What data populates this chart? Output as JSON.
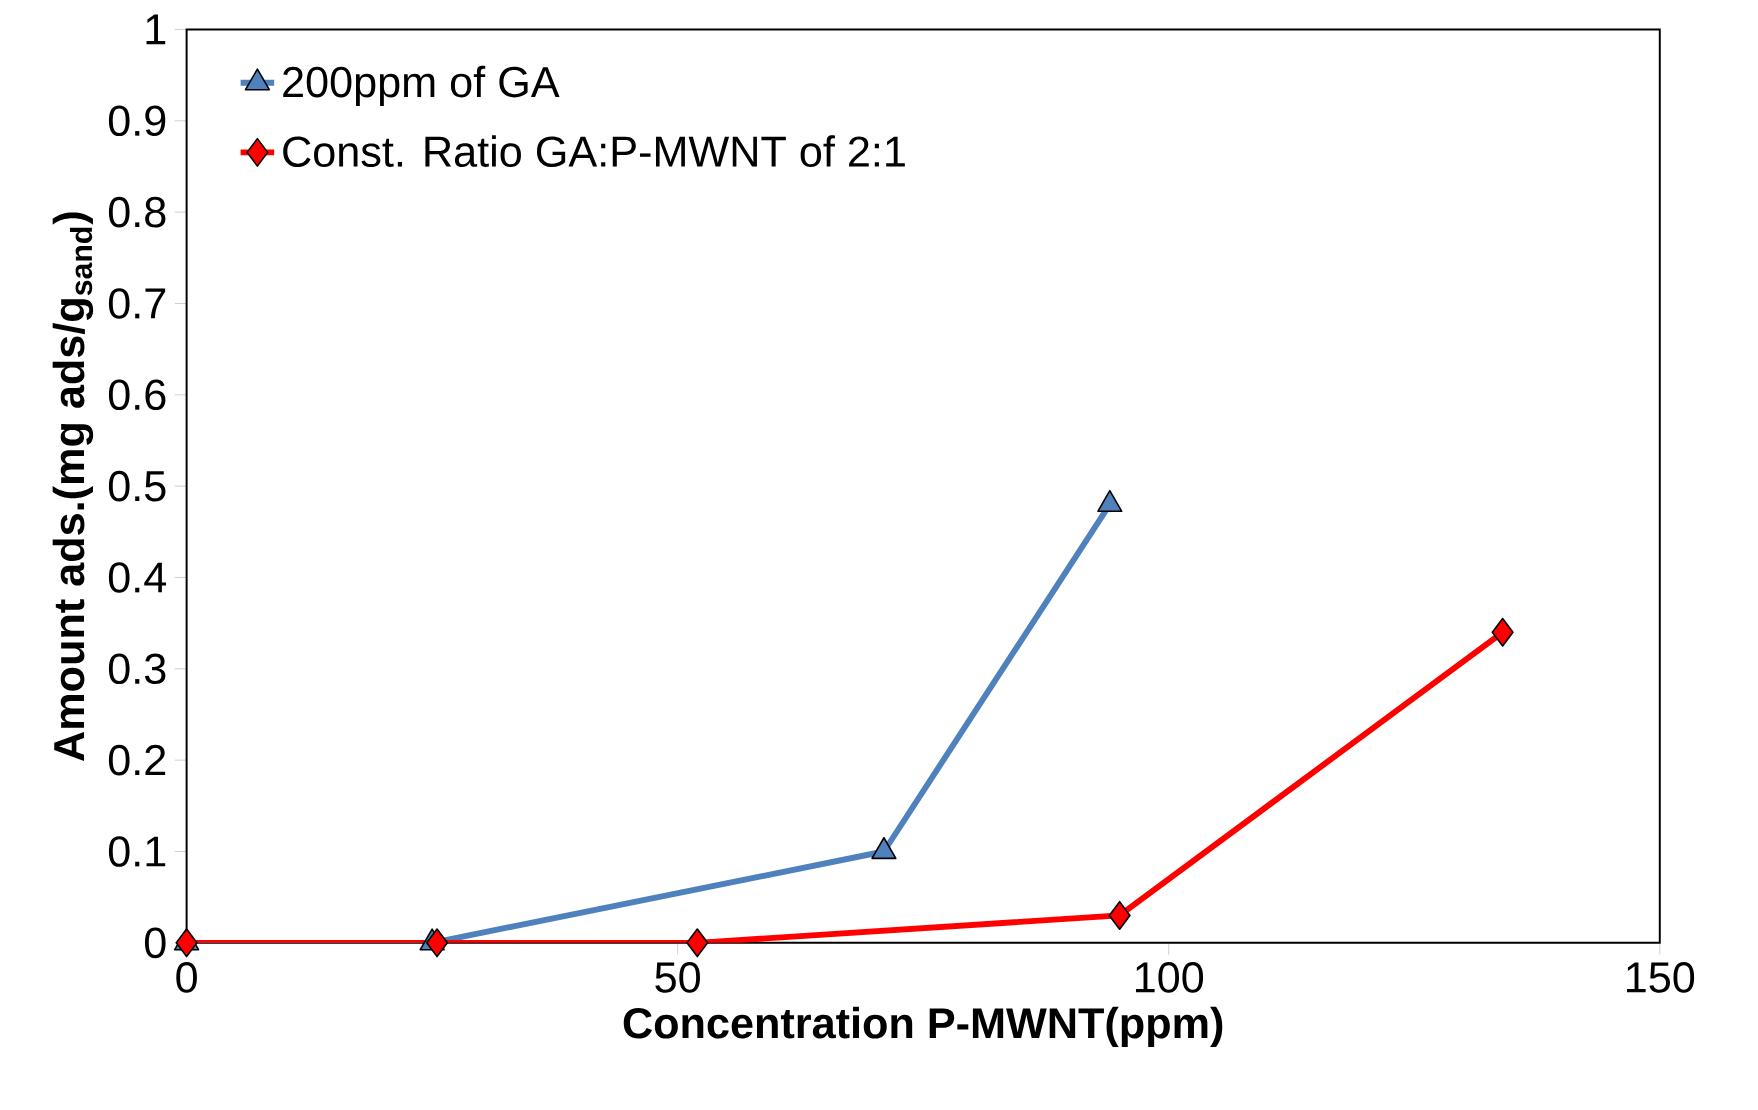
{
  "chart_data": {
    "type": "line",
    "xlabel": "Concentration P-MWNT(ppm)",
    "ylabel": "Amount ads.(mg ads/g$_{sand}$)",
    "xlim": [
      0,
      150
    ],
    "ylim": [
      0,
      1
    ],
    "xticks": [
      0,
      50,
      100,
      150
    ],
    "yticks": [
      0,
      0.1,
      0.2,
      0.3,
      0.4,
      0.5,
      0.6,
      0.7,
      0.8,
      0.9,
      1
    ],
    "legend": "top left",
    "grid": false,
    "series": [
      {
        "name": "200ppm of GA",
        "color": "#4f81bd",
        "marker": "triangle",
        "x": [
          0,
          25,
          71,
          94
        ],
        "values": [
          0,
          0,
          0.1,
          0.48
        ]
      },
      {
        "name": "Const. Ratio GA:P-MWNT of 2:1",
        "color": "#ff0000",
        "marker": "diamond",
        "x": [
          0,
          25.5,
          52,
          95,
          134
        ],
        "values": [
          0,
          0,
          0,
          0.03,
          0.34
        ]
      }
    ]
  }
}
